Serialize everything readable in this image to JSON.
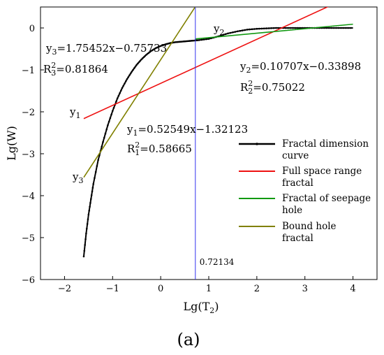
{
  "chart_data": {
    "type": "line",
    "xlabel_main": "Lg(T",
    "xlabel_sub": "2",
    "xlabel_close": ")",
    "ylabel": "Lg(W)",
    "xlim": [
      -2.5,
      4.5
    ],
    "ylim": [
      -6,
      0.5
    ],
    "x_ticks": [
      "−2",
      "−1",
      "0",
      "1",
      "2",
      "3",
      "4"
    ],
    "y_ticks": [
      "−6",
      "−5",
      "−4",
      "−3",
      "−2",
      "−1",
      "0"
    ],
    "x_tick_values": [
      -2,
      -1,
      0,
      1,
      2,
      3,
      4
    ],
    "y_tick_values": [
      -6,
      -5,
      -4,
      -3,
      -2,
      -1,
      0
    ],
    "grid": false,
    "legend_position": "right",
    "vline": {
      "x": 0.72134,
      "label": "0.72134",
      "color": "#3333ee"
    },
    "series": [
      {
        "name": "Fractal dimension curve",
        "color": "#000000",
        "x": [
          -1.6,
          -1.55,
          -1.5,
          -1.45,
          -1.4,
          -1.3,
          -1.2,
          -1.1,
          -1.0,
          -0.9,
          -0.8,
          -0.7,
          -0.6,
          -0.5,
          -0.4,
          -0.3,
          -0.2,
          -0.1,
          0.0,
          0.1,
          0.2,
          0.3,
          0.4,
          0.5,
          0.6,
          0.7,
          0.8,
          1.0,
          1.2,
          1.4,
          1.6,
          1.8,
          2.0,
          2.2,
          2.4,
          2.6,
          2.8,
          3.0,
          3.2,
          3.4,
          3.6,
          3.8,
          4.0
        ],
        "y": [
          -5.45,
          -4.9,
          -4.45,
          -4.08,
          -3.72,
          -3.15,
          -2.72,
          -2.32,
          -1.98,
          -1.68,
          -1.43,
          -1.22,
          -1.04,
          -0.88,
          -0.75,
          -0.64,
          -0.55,
          -0.48,
          -0.43,
          -0.39,
          -0.36,
          -0.34,
          -0.33,
          -0.32,
          -0.31,
          -0.3,
          -0.29,
          -0.26,
          -0.2,
          -0.13,
          -0.08,
          -0.04,
          -0.02,
          -0.01,
          0.0,
          0.0,
          0.0,
          0.0,
          0.0,
          0.0,
          0.0,
          0.0,
          0.0
        ]
      },
      {
        "name": "Full space range fractal",
        "color": "#ee1111",
        "type": "fit",
        "slope": 0.52549,
        "intercept": -1.32123,
        "x": [
          -1.6,
          3.5
        ]
      },
      {
        "name": "Fractal of seepage hole",
        "color": "#119911",
        "type": "fit",
        "slope": 0.10707,
        "intercept": -0.33898,
        "x": [
          0.72134,
          4.0
        ]
      },
      {
        "name": "Bound hole fractal",
        "color": "#808000",
        "type": "fit",
        "slope": 1.75452,
        "intercept": -0.75733,
        "x": [
          -1.6,
          0.72
        ]
      }
    ],
    "legend": [
      {
        "line1": "Fractal dimension",
        "line2": "curve",
        "color": "#000000",
        "marker": true
      },
      {
        "line1": "Full space range",
        "line2": "fractal",
        "color": "#ee1111",
        "marker": false
      },
      {
        "line1": "Fractal of seepage",
        "line2": "hole",
        "color": "#119911",
        "marker": false
      },
      {
        "line1": "Bound hole",
        "line2": "fractal",
        "color": "#808000",
        "marker": false
      }
    ],
    "annotations": {
      "y3_eq": {
        "pre": "y",
        "sub": "3",
        "post": "=1.75452x−0.75733"
      },
      "r3": {
        "pre": "R",
        "sub": "3",
        "sup": "2",
        "post": "=0.81864"
      },
      "y2_eq": {
        "pre": "y",
        "sub": "2",
        "post": "=0.10707x−0.33898"
      },
      "r2": {
        "pre": "R",
        "sub": "2",
        "sup": "2",
        "post": "=0.75022"
      },
      "y1_eq": {
        "pre": "y",
        "sub": "1",
        "post": "=0.52549x−1.32123"
      },
      "r1": {
        "pre": "R",
        "sub": "1",
        "sup": "2",
        "post": "=0.58665"
      },
      "y1_tag": {
        "pre": "y",
        "sub": "1"
      },
      "y2_tag": {
        "pre": "y",
        "sub": "2"
      },
      "y3_tag": {
        "pre": "y",
        "sub": "3"
      }
    },
    "panel_label": "(a)"
  }
}
